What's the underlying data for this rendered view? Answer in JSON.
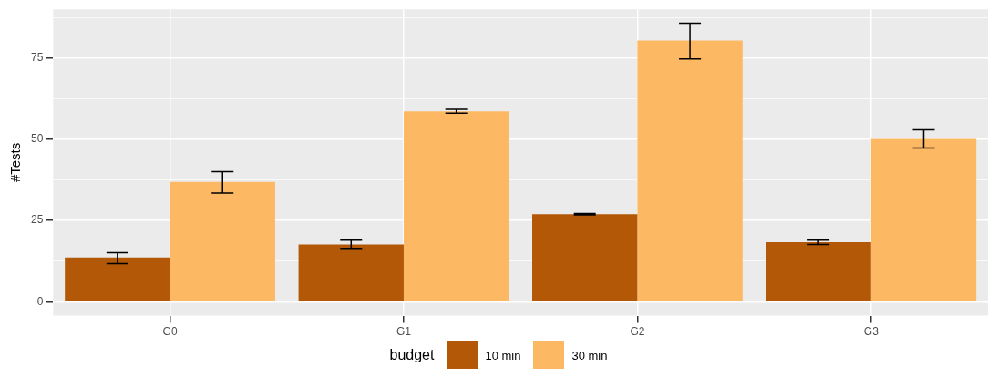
{
  "chart_data": {
    "type": "bar",
    "ylabel": "#Tests",
    "legend_title": "budget",
    "legend": "bottom",
    "grid": true,
    "categories": [
      "G0",
      "G1",
      "G2",
      "G3"
    ],
    "series": [
      {
        "name": "10 min",
        "color": "#b35806",
        "values": [
          13.6,
          17.6,
          26.9,
          18.3
        ],
        "errors": [
          [
            11.7,
            15.1
          ],
          [
            16.4,
            18.9
          ],
          [
            26.7,
            27.1
          ],
          [
            17.6,
            18.9
          ]
        ]
      },
      {
        "name": "30 min",
        "color": "#fdb863",
        "values": [
          36.9,
          58.6,
          80.4,
          50.1
        ],
        "errors": [
          [
            33.4,
            40.0
          ],
          [
            58.0,
            59.2
          ],
          [
            74.7,
            85.7
          ],
          [
            47.3,
            52.9
          ]
        ]
      }
    ],
    "ylim": [
      -4.3,
      90
    ],
    "yticks": [
      0,
      {
        "value": 12.5,
        "label": null
      },
      25,
      {
        "value": 37.5,
        "label": null
      },
      50,
      {
        "value": 62.5,
        "label": null
      },
      75,
      {
        "value": 87.5,
        "label": null
      }
    ]
  }
}
